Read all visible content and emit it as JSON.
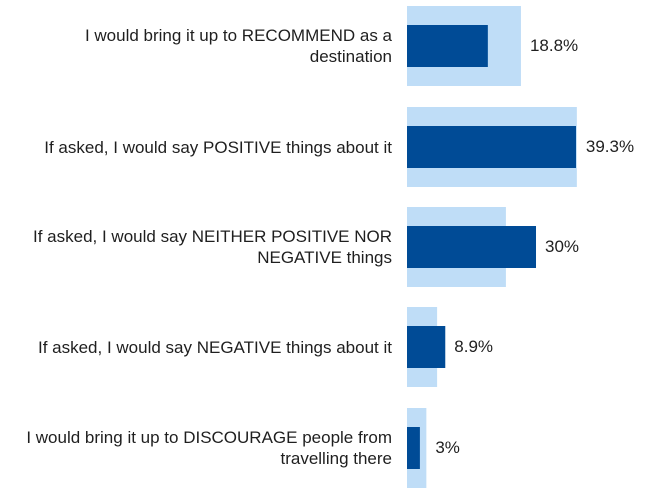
{
  "chart_data": {
    "type": "bar",
    "orientation": "horizontal",
    "categories": [
      "I would bring it up to RECOMMEND as a destination",
      "If asked, I would say POSITIVE things about it",
      "If asked, I would say NEITHER POSITIVE NOR NEGATIVE things",
      "If asked, I would say NEGATIVE things about it",
      "I would bring it up to DISCOURAGE people from travelling there"
    ],
    "series": [
      {
        "values": [
          18.8,
          39.3,
          30,
          8.9,
          3
        ],
        "labels": [
          "18.8%",
          "39.3%",
          "30%",
          "8.9%",
          "3%"
        ]
      },
      {
        "values": [
          26.5,
          39.5,
          23,
          7,
          4.5
        ]
      }
    ],
    "colors": {
      "primary": "#004b96",
      "secondary": "#bfddf7"
    },
    "xlim": [
      0,
      40
    ],
    "grid": false,
    "legend": "none"
  }
}
